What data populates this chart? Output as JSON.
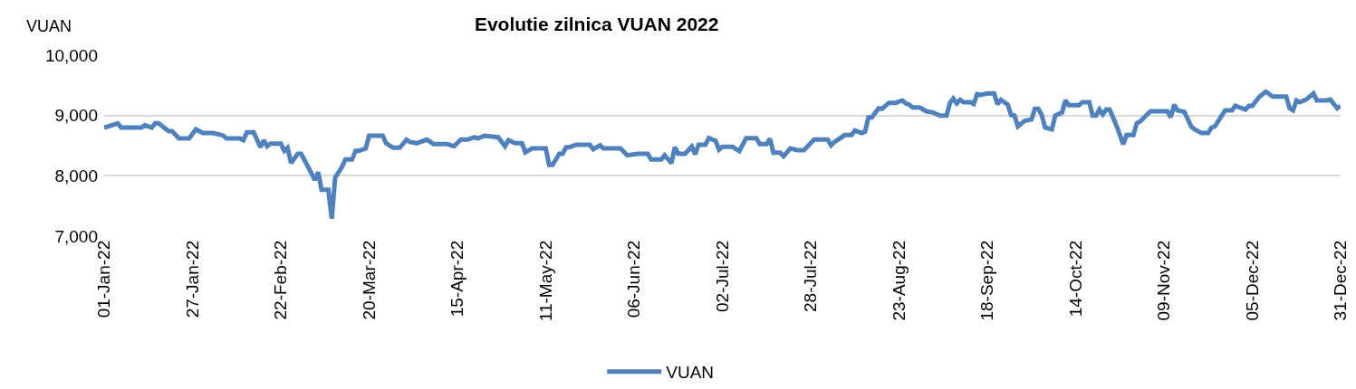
{
  "chart_data": {
    "type": "line",
    "title": "Evolutie zilnica VUAN 2022",
    "ylabel": "VUAN",
    "x": [
      "2022-01-01",
      "2022-01-05",
      "2022-01-06",
      "2022-01-12",
      "2022-01-13",
      "2022-01-15",
      "2022-01-16",
      "2022-01-17",
      "2022-01-20",
      "2022-01-21",
      "2022-01-23",
      "2022-01-26",
      "2022-01-28",
      "2022-01-30",
      "2022-02-02",
      "2022-02-05",
      "2022-02-06",
      "2022-02-10",
      "2022-02-11",
      "2022-02-12",
      "2022-02-14",
      "2022-02-16",
      "2022-02-17",
      "2022-02-18",
      "2022-02-19",
      "2022-02-22",
      "2022-02-23",
      "2022-02-24",
      "2022-02-25",
      "2022-02-27",
      "2022-02-28",
      "2022-03-03",
      "2022-03-04",
      "2022-03-05",
      "2022-03-06",
      "2022-03-08",
      "2022-03-09",
      "2022-03-10",
      "2022-03-12",
      "2022-03-13",
      "2022-03-15",
      "2022-03-16",
      "2022-03-17",
      "2022-03-19",
      "2022-03-20",
      "2022-03-24",
      "2022-03-25",
      "2022-03-27",
      "2022-03-29",
      "2022-03-31",
      "2022-04-01",
      "2022-04-03",
      "2022-04-06",
      "2022-04-08",
      "2022-04-12",
      "2022-04-14",
      "2022-04-16",
      "2022-04-18",
      "2022-04-20",
      "2022-04-21",
      "2022-04-23",
      "2022-04-27",
      "2022-04-29",
      "2022-04-30",
      "2022-05-02",
      "2022-05-04",
      "2022-05-05",
      "2022-05-07",
      "2022-05-11",
      "2022-05-12",
      "2022-05-13",
      "2022-05-15",
      "2022-05-16",
      "2022-05-17",
      "2022-05-18",
      "2022-05-20",
      "2022-05-24",
      "2022-05-25",
      "2022-05-27",
      "2022-05-28",
      "2022-06-02",
      "2022-06-04",
      "2022-06-07",
      "2022-06-10",
      "2022-06-11",
      "2022-06-14",
      "2022-06-15",
      "2022-06-17",
      "2022-06-18",
      "2022-06-19",
      "2022-06-21",
      "2022-06-23",
      "2022-06-24",
      "2022-06-25",
      "2022-06-27",
      "2022-06-28",
      "2022-06-30",
      "2022-07-01",
      "2022-07-02",
      "2022-07-05",
      "2022-07-07",
      "2022-07-09",
      "2022-07-12",
      "2022-07-13",
      "2022-07-15",
      "2022-07-16",
      "2022-07-17",
      "2022-07-19",
      "2022-07-20",
      "2022-07-22",
      "2022-07-24",
      "2022-07-26",
      "2022-07-29",
      "2022-08-02",
      "2022-08-03",
      "2022-08-04",
      "2022-08-07",
      "2022-08-09",
      "2022-08-10",
      "2022-08-12",
      "2022-08-13",
      "2022-08-14",
      "2022-08-15",
      "2022-08-17",
      "2022-08-18",
      "2022-08-20",
      "2022-08-22",
      "2022-08-24",
      "2022-08-25",
      "2022-08-26",
      "2022-08-27",
      "2022-08-29",
      "2022-08-31",
      "2022-09-02",
      "2022-09-04",
      "2022-09-06",
      "2022-09-07",
      "2022-09-08",
      "2022-09-09",
      "2022-09-10",
      "2022-09-11",
      "2022-09-13",
      "2022-09-14",
      "2022-09-15",
      "2022-09-16",
      "2022-09-18",
      "2022-09-20",
      "2022-09-21",
      "2022-09-22",
      "2022-09-24",
      "2022-09-25",
      "2022-09-26",
      "2022-09-27",
      "2022-09-29",
      "2022-10-01",
      "2022-10-02",
      "2022-10-03",
      "2022-10-04",
      "2022-10-05",
      "2022-10-07",
      "2022-10-08",
      "2022-10-10",
      "2022-10-11",
      "2022-10-12",
      "2022-10-15",
      "2022-10-16",
      "2022-10-18",
      "2022-10-19",
      "2022-10-20",
      "2022-10-21",
      "2022-10-22",
      "2022-10-23",
      "2022-10-24",
      "2022-10-26",
      "2022-10-28",
      "2022-10-29",
      "2022-10-31",
      "2022-11-01",
      "2022-11-02",
      "2022-11-05",
      "2022-11-10",
      "2022-11-11",
      "2022-11-12",
      "2022-11-13",
      "2022-11-15",
      "2022-11-17",
      "2022-11-18",
      "2022-11-20",
      "2022-11-22",
      "2022-11-23",
      "2022-11-24",
      "2022-11-27",
      "2022-11-29",
      "2022-11-30",
      "2022-12-03",
      "2022-12-04",
      "2022-12-05",
      "2022-12-07",
      "2022-12-09",
      "2022-12-11",
      "2022-12-15",
      "2022-12-16",
      "2022-12-17",
      "2022-12-18",
      "2022-12-19",
      "2022-12-21",
      "2022-12-23",
      "2022-12-24",
      "2022-12-27",
      "2022-12-28",
      "2022-12-30",
      "2022-12-31"
    ],
    "series": [
      {
        "name": "VUAN",
        "color": "#4f81bd",
        "values": [
          8800,
          8870,
          8800,
          8800,
          8840,
          8800,
          8870,
          8870,
          8740,
          8740,
          8620,
          8620,
          8770,
          8710,
          8710,
          8670,
          8620,
          8620,
          8590,
          8720,
          8720,
          8475,
          8590,
          8490,
          8535,
          8535,
          8415,
          8465,
          8210,
          8365,
          8365,
          8045,
          7930,
          8060,
          7770,
          7770,
          7290,
          7970,
          8145,
          8270,
          8270,
          8415,
          8415,
          8455,
          8665,
          8665,
          8540,
          8465,
          8465,
          8600,
          8560,
          8540,
          8600,
          8525,
          8525,
          8490,
          8600,
          8600,
          8640,
          8620,
          8665,
          8640,
          8490,
          8590,
          8540,
          8540,
          8390,
          8455,
          8455,
          8180,
          8180,
          8365,
          8365,
          8475,
          8475,
          8515,
          8515,
          8440,
          8505,
          8455,
          8455,
          8340,
          8365,
          8365,
          8270,
          8270,
          8340,
          8210,
          8475,
          8365,
          8365,
          8485,
          8355,
          8515,
          8515,
          8625,
          8580,
          8435,
          8480,
          8480,
          8410,
          8625,
          8625,
          8525,
          8525,
          8615,
          8385,
          8385,
          8325,
          8455,
          8425,
          8425,
          8600,
          8600,
          8505,
          8560,
          8675,
          8675,
          8750,
          8710,
          8730,
          8970,
          8970,
          9120,
          9110,
          9210,
          9210,
          9250,
          9200,
          9180,
          9135,
          9135,
          9070,
          9050,
          9000,
          9000,
          9210,
          9280,
          9200,
          9260,
          9220,
          9220,
          9190,
          9355,
          9340,
          9365,
          9365,
          9185,
          9260,
          9180,
          9010,
          9000,
          8820,
          8910,
          8935,
          9110,
          9110,
          9010,
          8800,
          8770,
          9000,
          9050,
          9250,
          9170,
          9170,
          9220,
          9220,
          9000,
          9000,
          9100,
          9020,
          9100,
          9100,
          8835,
          8525,
          8675,
          8675,
          8870,
          8900,
          9070,
          9070,
          8970,
          9180,
          9085,
          9060,
          8820,
          8770,
          8710,
          8710,
          8800,
          8820,
          9085,
          9085,
          9160,
          9100,
          9160,
          9160,
          9305,
          9395,
          9315,
          9315,
          9120,
          9085,
          9250,
          9220,
          9270,
          9365,
          9250,
          9250,
          9265,
          9120,
          9160
        ]
      }
    ],
    "xlim": [
      "2022-01-01",
      "2022-12-31"
    ],
    "xticks": [
      {
        "value": "2022-01-01",
        "label": "01-Jan-22"
      },
      {
        "value": "2022-01-27",
        "label": "27-Jan-22"
      },
      {
        "value": "2022-02-22",
        "label": "22-Feb-22"
      },
      {
        "value": "2022-03-20",
        "label": "20-Mar-22"
      },
      {
        "value": "2022-04-15",
        "label": "15-Apr-22"
      },
      {
        "value": "2022-05-11",
        "label": "11-May-22"
      },
      {
        "value": "2022-06-06",
        "label": "06-Jun-22"
      },
      {
        "value": "2022-07-02",
        "label": "02-Jul-22"
      },
      {
        "value": "2022-07-28",
        "label": "28-Jul-22"
      },
      {
        "value": "2022-08-23",
        "label": "23-Aug-22"
      },
      {
        "value": "2022-09-18",
        "label": "18-Sep-22"
      },
      {
        "value": "2022-10-14",
        "label": "14-Oct-22"
      },
      {
        "value": "2022-11-09",
        "label": "09-Nov-22"
      },
      {
        "value": "2022-12-05",
        "label": "05-Dec-22"
      },
      {
        "value": "2022-12-31",
        "label": "31-Dec-22"
      }
    ],
    "ylim": [
      7000,
      10000
    ],
    "yticks": [
      {
        "value": 7000,
        "label": "7,000"
      },
      {
        "value": 8000,
        "label": "8,000"
      },
      {
        "value": 9000,
        "label": "9,000"
      },
      {
        "value": 10000,
        "label": "10,000"
      }
    ],
    "grid": "y",
    "legend": "bottom",
    "marker": "none",
    "line_style": "solid"
  }
}
